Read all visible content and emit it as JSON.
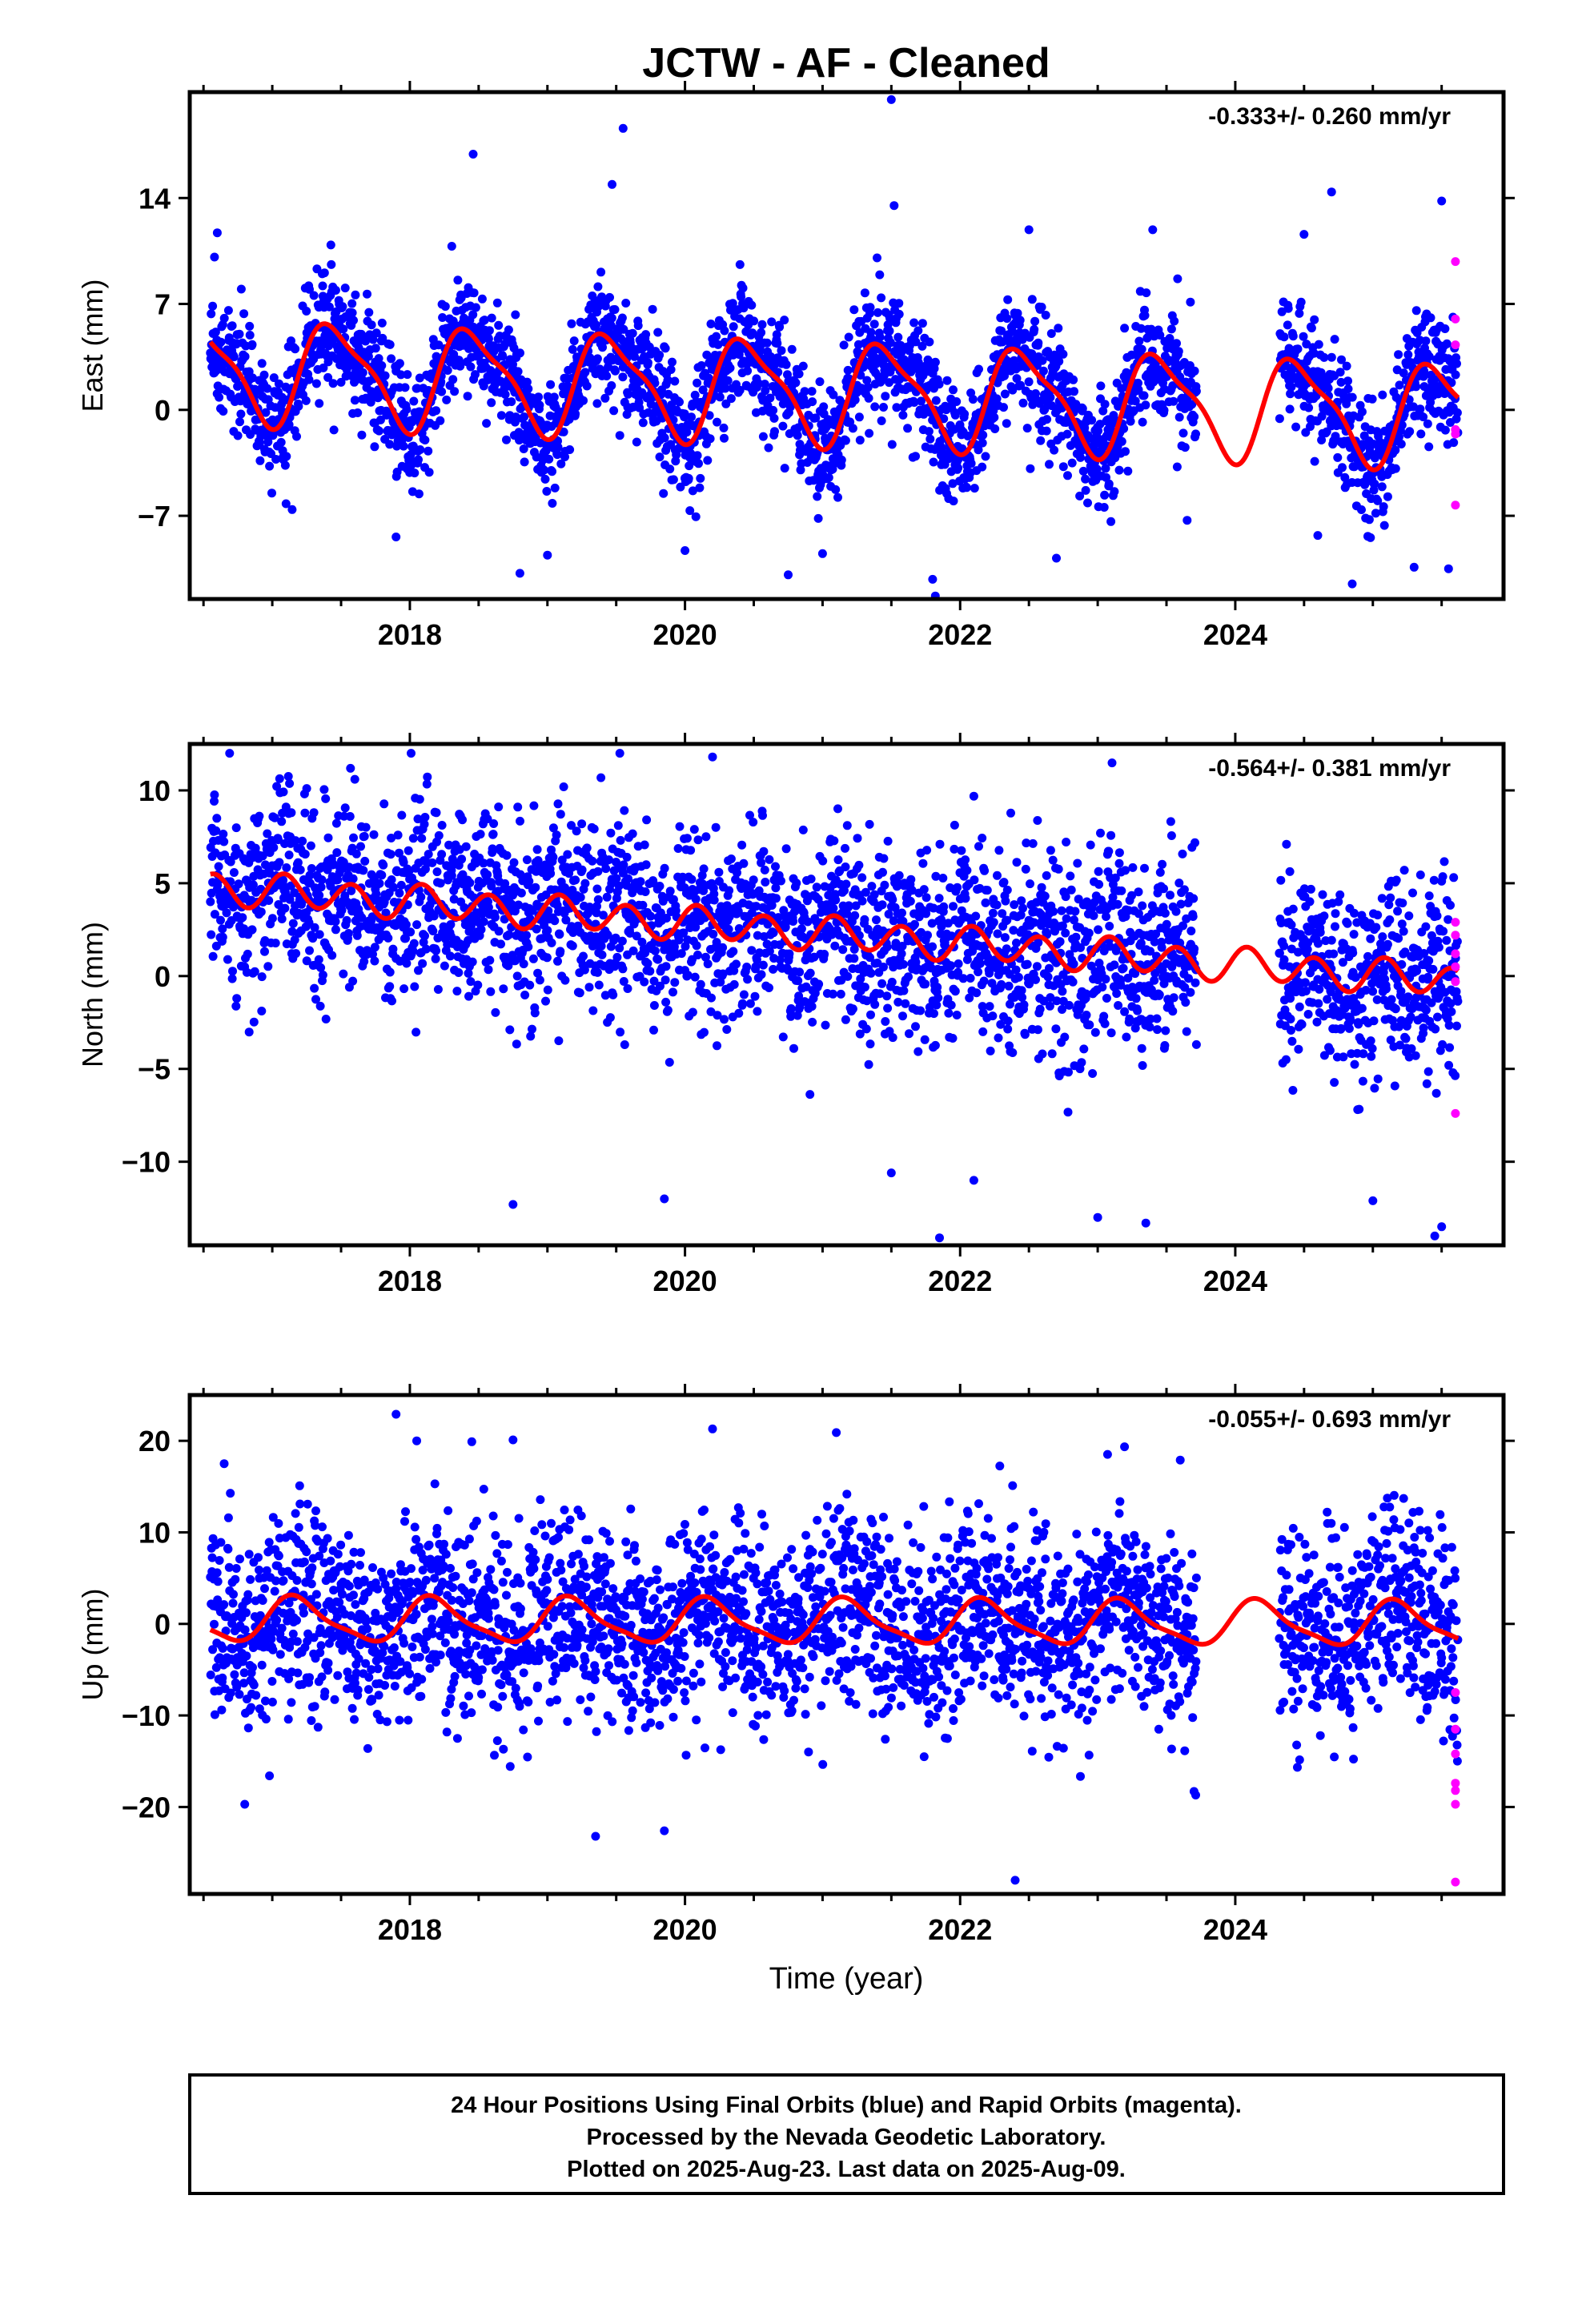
{
  "title": "JCTW  - AF - Cleaned",
  "chart_data": [
    {
      "type": "scatter",
      "panel": "east",
      "ylabel": "East (mm)",
      "rate_label": "-0.333+/- 0.260 mm/yr",
      "xlim": [
        2016.4,
        2025.95
      ],
      "ylim": [
        -12.5,
        21
      ],
      "yticks": [
        -7,
        0,
        7,
        14
      ],
      "xticks": [
        2018,
        2020,
        2022,
        2024
      ],
      "final_color": "#0000ff",
      "rapid_color": "#ff00ff",
      "model_color": "#ff0000",
      "data_start": 2016.55,
      "data_end": 2025.62,
      "gap": [
        2023.72,
        2024.32
      ],
      "model": {
        "offset": 1.2,
        "trend": -0.333,
        "annual_amp": 3.2,
        "annual_peak": 0.46,
        "semiannual_amp": 0.9,
        "semiannual_phase": 0.3,
        "noise_sd": 1.9
      },
      "rapid_points": [
        [
          2025.6,
          9.8
        ],
        [
          2025.6,
          6.0
        ],
        [
          2025.6,
          4.3
        ],
        [
          2025.6,
          -1.3
        ],
        [
          2025.6,
          -1.6
        ],
        [
          2025.6,
          -6.3
        ]
      ],
      "outliers": [
        [
          2016.58,
          10.1
        ],
        [
          2016.6,
          11.7
        ],
        [
          2017.1,
          -6.2
        ],
        [
          2017.9,
          -8.4
        ],
        [
          2018.46,
          16.9
        ],
        [
          2018.8,
          -10.8
        ],
        [
          2019.0,
          -9.6
        ],
        [
          2019.47,
          14.9
        ],
        [
          2019.55,
          18.6
        ],
        [
          2020.0,
          -9.3
        ],
        [
          2020.4,
          9.6
        ],
        [
          2020.75,
          -10.9
        ],
        [
          2021.0,
          -9.5
        ],
        [
          2021.5,
          20.5
        ],
        [
          2021.52,
          13.5
        ],
        [
          2021.8,
          -11.2
        ],
        [
          2021.82,
          -12.3
        ],
        [
          2022.5,
          11.9
        ],
        [
          2022.7,
          -9.8
        ],
        [
          2023.4,
          11.9
        ],
        [
          2023.65,
          -7.3
        ],
        [
          2024.5,
          11.6
        ],
        [
          2024.6,
          -8.3
        ],
        [
          2024.7,
          14.4
        ],
        [
          2024.85,
          -11.5
        ],
        [
          2025.3,
          -10.4
        ],
        [
          2025.5,
          13.8
        ],
        [
          2025.55,
          -10.5
        ]
      ]
    },
    {
      "type": "scatter",
      "panel": "north",
      "ylabel": "North (mm)",
      "rate_label": "-0.564+/- 0.381 mm/yr",
      "xlim": [
        2016.4,
        2025.95
      ],
      "ylim": [
        -14.5,
        12.5
      ],
      "yticks": [
        -10,
        -5,
        0,
        5,
        10
      ],
      "xticks": [
        2018,
        2020,
        2022,
        2024
      ],
      "final_color": "#0000ff",
      "rapid_color": "#ff00ff",
      "model_color": "#ff0000",
      "data_start": 2016.55,
      "data_end": 2025.62,
      "gap": [
        2023.72,
        2024.32
      ],
      "model": {
        "offset": 2.3,
        "trend": -0.564,
        "annual_amp": 0.2,
        "annual_peak": 0.2,
        "semiannual_amp": 0.85,
        "semiannual_phase": 0.08,
        "noise_sd": 2.6
      },
      "rapid_points": [
        [
          2025.6,
          2.9
        ],
        [
          2025.6,
          2.2
        ],
        [
          2025.6,
          1.2
        ],
        [
          2025.6,
          0.5
        ],
        [
          2025.6,
          -0.3
        ],
        [
          2025.6,
          -7.4
        ]
      ],
      "outliers": [
        [
          2017.25,
          10.1
        ],
        [
          2017.6,
          10.6
        ],
        [
          2018.75,
          -12.3
        ],
        [
          2019.85,
          -12.0
        ],
        [
          2020.2,
          11.8
        ],
        [
          2021.5,
          -10.6
        ],
        [
          2021.85,
          -14.1
        ],
        [
          2022.1,
          -11.0
        ],
        [
          2023.0,
          -13.0
        ],
        [
          2023.35,
          -13.3
        ],
        [
          2025.0,
          -12.1
        ],
        [
          2025.45,
          -14.0
        ],
        [
          2025.5,
          -13.5
        ]
      ]
    },
    {
      "type": "scatter",
      "panel": "up",
      "ylabel": "Up (mm)",
      "rate_label": "-0.055+/- 0.693 mm/yr",
      "xlim": [
        2016.4,
        2025.95
      ],
      "ylim": [
        -29.5,
        25
      ],
      "yticks": [
        -20,
        -10,
        0,
        10,
        20
      ],
      "xticks": [
        2018,
        2020,
        2022,
        2024
      ],
      "final_color": "#0000ff",
      "rapid_color": "#ff00ff",
      "model_color": "#ff0000",
      "data_start": 2016.55,
      "data_end": 2025.62,
      "gap": [
        2023.72,
        2024.32
      ],
      "model": {
        "offset": 0.2,
        "trend": -0.055,
        "annual_amp": 2.3,
        "annual_peak": 0.18,
        "semiannual_amp": 0.6,
        "semiannual_phase": 0.1,
        "noise_sd": 5.3
      },
      "rapid_points": [
        [
          2025.6,
          -7.5
        ],
        [
          2025.6,
          -11.5
        ],
        [
          2025.6,
          -14.2
        ],
        [
          2025.6,
          -17.4
        ],
        [
          2025.6,
          -18.2
        ],
        [
          2025.6,
          -19.7
        ],
        [
          2025.6,
          -28.2
        ]
      ],
      "outliers": [
        [
          2016.65,
          17.5
        ],
        [
          2016.8,
          -19.7
        ],
        [
          2017.9,
          22.9
        ],
        [
          2018.05,
          20.0
        ],
        [
          2018.45,
          19.9
        ],
        [
          2018.75,
          20.1
        ],
        [
          2019.35,
          -23.2
        ],
        [
          2019.85,
          -22.6
        ],
        [
          2020.2,
          21.3
        ],
        [
          2021.1,
          20.9
        ],
        [
          2022.4,
          -28.0
        ],
        [
          2023.6,
          17.9
        ],
        [
          2023.7,
          -18.3
        ]
      ]
    }
  ],
  "xlabel": "Time (year)",
  "footer": {
    "line1": "24 Hour Positions Using Final Orbits (blue) and Rapid Orbits (magenta).",
    "line2": "Processed by the Nevada Geodetic Laboratory.",
    "line3": "Plotted on 2025-Aug-23. Last data on 2025-Aug-09."
  }
}
